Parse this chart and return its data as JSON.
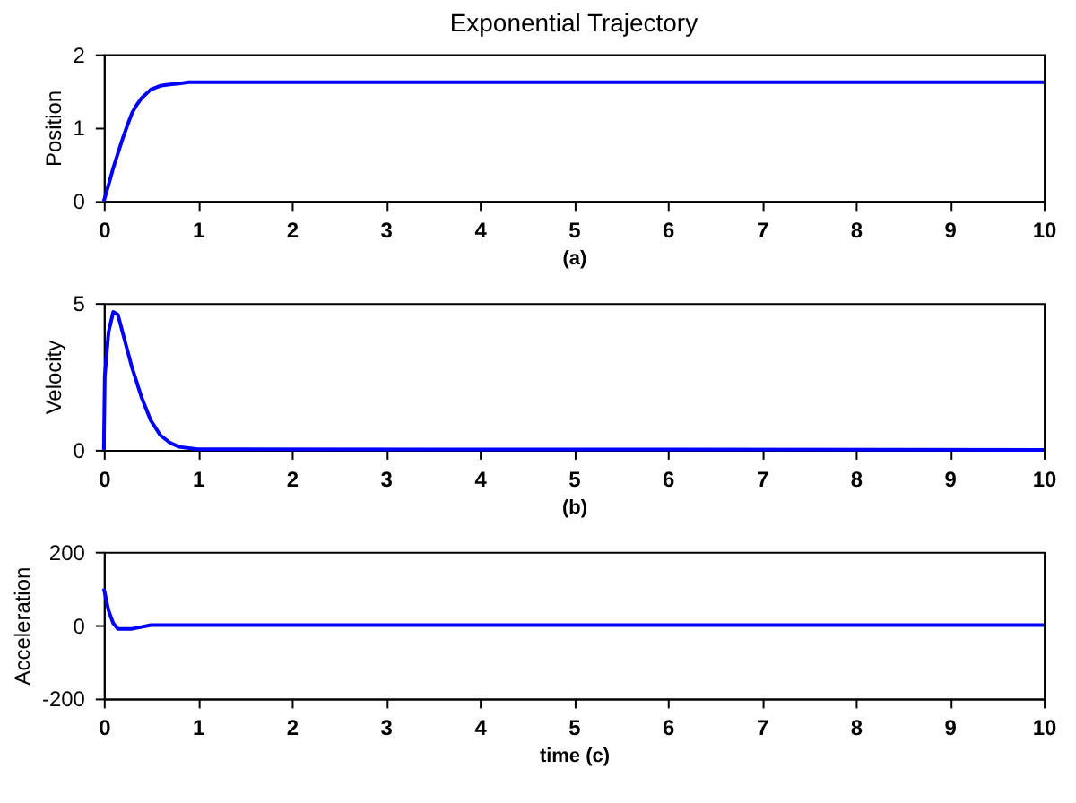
{
  "chart_data": [
    {
      "type": "line",
      "title": "Exponential Trajectory",
      "xlabel": "(a)",
      "ylabel": "Position",
      "x": [
        0,
        0.05,
        0.1,
        0.15,
        0.2,
        0.25,
        0.3,
        0.35,
        0.4,
        0.5,
        0.6,
        0.7,
        0.8,
        0.9,
        1,
        10
      ],
      "series": [
        {
          "color": "#0000ff",
          "values": [
            0,
            0.22,
            0.45,
            0.65,
            0.85,
            1.03,
            1.2,
            1.31,
            1.4,
            1.52,
            1.57,
            1.59,
            1.6,
            1.62,
            1.62,
            1.62
          ]
        }
      ],
      "xlim": [
        0,
        10
      ],
      "xticks": [
        0,
        1,
        2,
        3,
        4,
        5,
        6,
        7,
        8,
        9,
        10
      ],
      "ylim": [
        0,
        2
      ],
      "yticks": [
        0,
        1,
        2
      ],
      "grid": false
    },
    {
      "type": "line",
      "xlabel": "(b)",
      "ylabel": "Velocity",
      "x": [
        0,
        0.01,
        0.05,
        0.1,
        0.15,
        0.2,
        0.3,
        0.4,
        0.5,
        0.6,
        0.7,
        0.8,
        1,
        10
      ],
      "series": [
        {
          "color": "#0000ff",
          "values": [
            0,
            2.5,
            4,
            4.7,
            4.6,
            4.0,
            2.8,
            1.8,
            1.0,
            0.5,
            0.25,
            0.1,
            0.02,
            0
          ]
        }
      ],
      "xlim": [
        0,
        10
      ],
      "xticks": [
        0,
        1,
        2,
        3,
        4,
        5,
        6,
        7,
        8,
        9,
        10
      ],
      "ylim": [
        0,
        5
      ],
      "yticks": [
        0,
        5
      ],
      "grid": false
    },
    {
      "type": "line",
      "xlabel": "time  (c)",
      "ylabel": "Acceleration",
      "x": [
        0,
        0.05,
        0.1,
        0.15,
        0.3,
        0.4,
        0.5,
        10
      ],
      "series": [
        {
          "color": "#0000ff",
          "values": [
            100,
            40,
            5,
            -10,
            -10,
            -5,
            0,
            0
          ]
        }
      ],
      "xlim": [
        0,
        10
      ],
      "xticks": [
        0,
        1,
        2,
        3,
        4,
        5,
        6,
        7,
        8,
        9,
        10
      ],
      "ylim": [
        -200,
        200
      ],
      "yticks": [
        -200,
        0,
        200
      ],
      "grid": false
    }
  ]
}
